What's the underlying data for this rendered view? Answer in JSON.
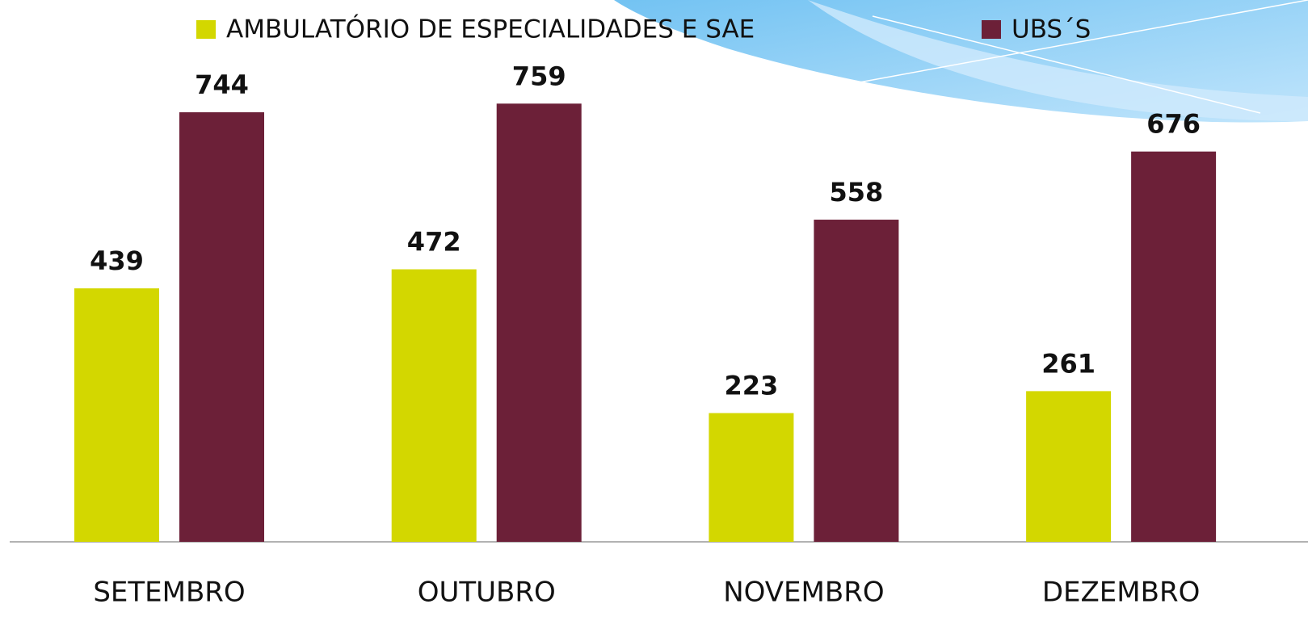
{
  "chart_data": {
    "type": "bar",
    "categories": [
      "SETEMBRO",
      "OUTUBRO",
      "NOVEMBRO",
      "DEZEMBRO"
    ],
    "series": [
      {
        "name": "AMBULATÓRIO DE ESPECIALIDADES  E SAE",
        "color": "#d3d700",
        "values": [
          439,
          472,
          223,
          261
        ]
      },
      {
        "name": "UBS´S",
        "color": "#6c2038",
        "values": [
          744,
          759,
          558,
          676
        ]
      }
    ]
  }
}
